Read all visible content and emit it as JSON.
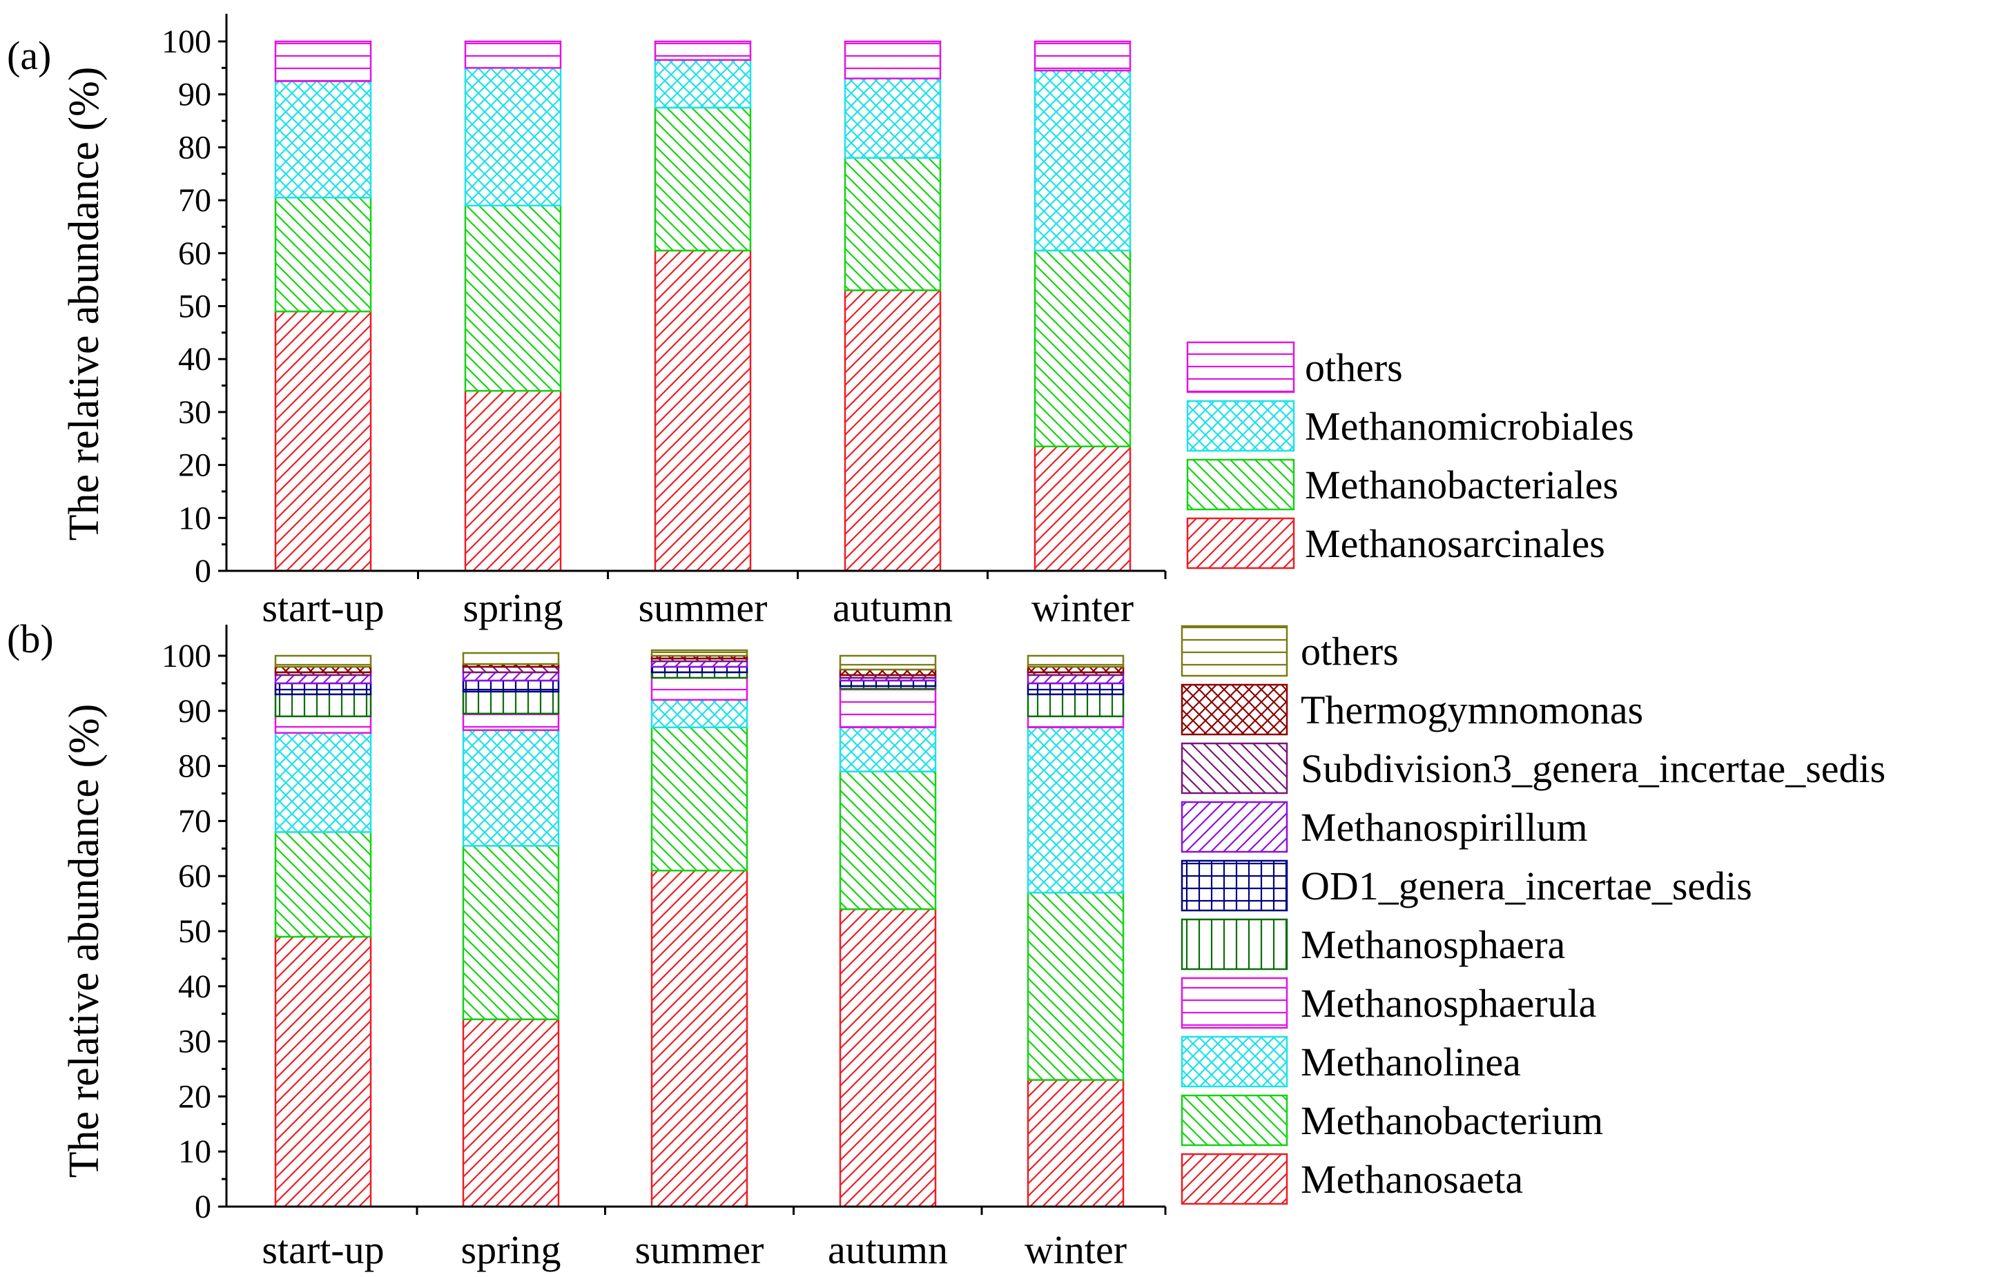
{
  "colors": {
    "red": "#ee1c24",
    "green": "#14d314",
    "cyan": "#1ee1e9",
    "magenta": "#e115e1",
    "darkgreen": "#0a6e0a",
    "navy": "#00007f",
    "purple": "#8b10e1",
    "plum": "#7a167a",
    "darkred": "#8b0000",
    "olive": "#7b7a10"
  },
  "chart_data": [
    {
      "type": "bar",
      "stacked": true,
      "panel_label": "(a)",
      "categories": [
        "start-up",
        "spring",
        "summer",
        "autumn",
        "winter"
      ],
      "ylabel": "The relative abundance (%)",
      "ylim": [
        0,
        100
      ],
      "yticks": [
        0,
        10,
        20,
        30,
        40,
        50,
        60,
        70,
        80,
        90,
        100
      ],
      "legend_position": "right",
      "series": [
        {
          "name": "Methanosarcinales",
          "color": "red",
          "pattern": "diag-fwd",
          "values": [
            49,
            34,
            60.5,
            53,
            23.5
          ]
        },
        {
          "name": "Methanobacteriales",
          "color": "green",
          "pattern": "diag-back",
          "values": [
            21.5,
            35,
            27,
            25,
            37
          ]
        },
        {
          "name": "Methanomicrobiales",
          "color": "cyan",
          "pattern": "crosshatch",
          "values": [
            22,
            26,
            9,
            15,
            34
          ]
        },
        {
          "name": "others",
          "color": "magenta",
          "pattern": "horizontal",
          "values": [
            7.5,
            5,
            3.5,
            7,
            5.5
          ]
        }
      ]
    },
    {
      "type": "bar",
      "stacked": true,
      "panel_label": "(b)",
      "categories": [
        "start-up",
        "spring",
        "summer",
        "autumn",
        "winter"
      ],
      "ylabel": "The relative abundance (%)",
      "ylim": [
        0,
        100
      ],
      "yticks": [
        0,
        10,
        20,
        30,
        40,
        50,
        60,
        70,
        80,
        90,
        100
      ],
      "legend_position": "right",
      "series": [
        {
          "name": "Methanosaeta",
          "color": "red",
          "pattern": "diag-fwd",
          "values": [
            49,
            34,
            61,
            54,
            23
          ]
        },
        {
          "name": "Methanobacterium",
          "color": "green",
          "pattern": "diag-back",
          "values": [
            19,
            31.5,
            26,
            25,
            34
          ]
        },
        {
          "name": "Methanolinea",
          "color": "cyan",
          "pattern": "crosshatch",
          "values": [
            18,
            21,
            5,
            8,
            30
          ]
        },
        {
          "name": "Methanosphaerula",
          "color": "magenta",
          "pattern": "horizontal",
          "values": [
            3,
            3,
            4,
            7,
            2
          ]
        },
        {
          "name": "Methanosphaera",
          "color": "darkgreen",
          "pattern": "vertical",
          "values": [
            4,
            4,
            1,
            0.5,
            4
          ]
        },
        {
          "name": "OD1_genera_incertae_sedis",
          "color": "navy",
          "pattern": "grid",
          "values": [
            2,
            2,
            1,
            1,
            2
          ]
        },
        {
          "name": "Methanospirillum",
          "color": "purple",
          "pattern": "diag-fwd",
          "values": [
            1.5,
            1.5,
            1,
            0.5,
            1.5
          ]
        },
        {
          "name": "Subdivision3_genera_incertae_sedis",
          "color": "plum",
          "pattern": "diag-back",
          "values": [
            0.5,
            1,
            0.5,
            0.5,
            0.5
          ]
        },
        {
          "name": "Thermogymnomonas",
          "color": "darkred",
          "pattern": "crosshatch",
          "values": [
            1,
            0.5,
            0.5,
            1,
            1
          ]
        },
        {
          "name": "others",
          "color": "olive",
          "pattern": "horizontal",
          "values": [
            2,
            2,
            1,
            2.5,
            2
          ]
        }
      ]
    }
  ]
}
